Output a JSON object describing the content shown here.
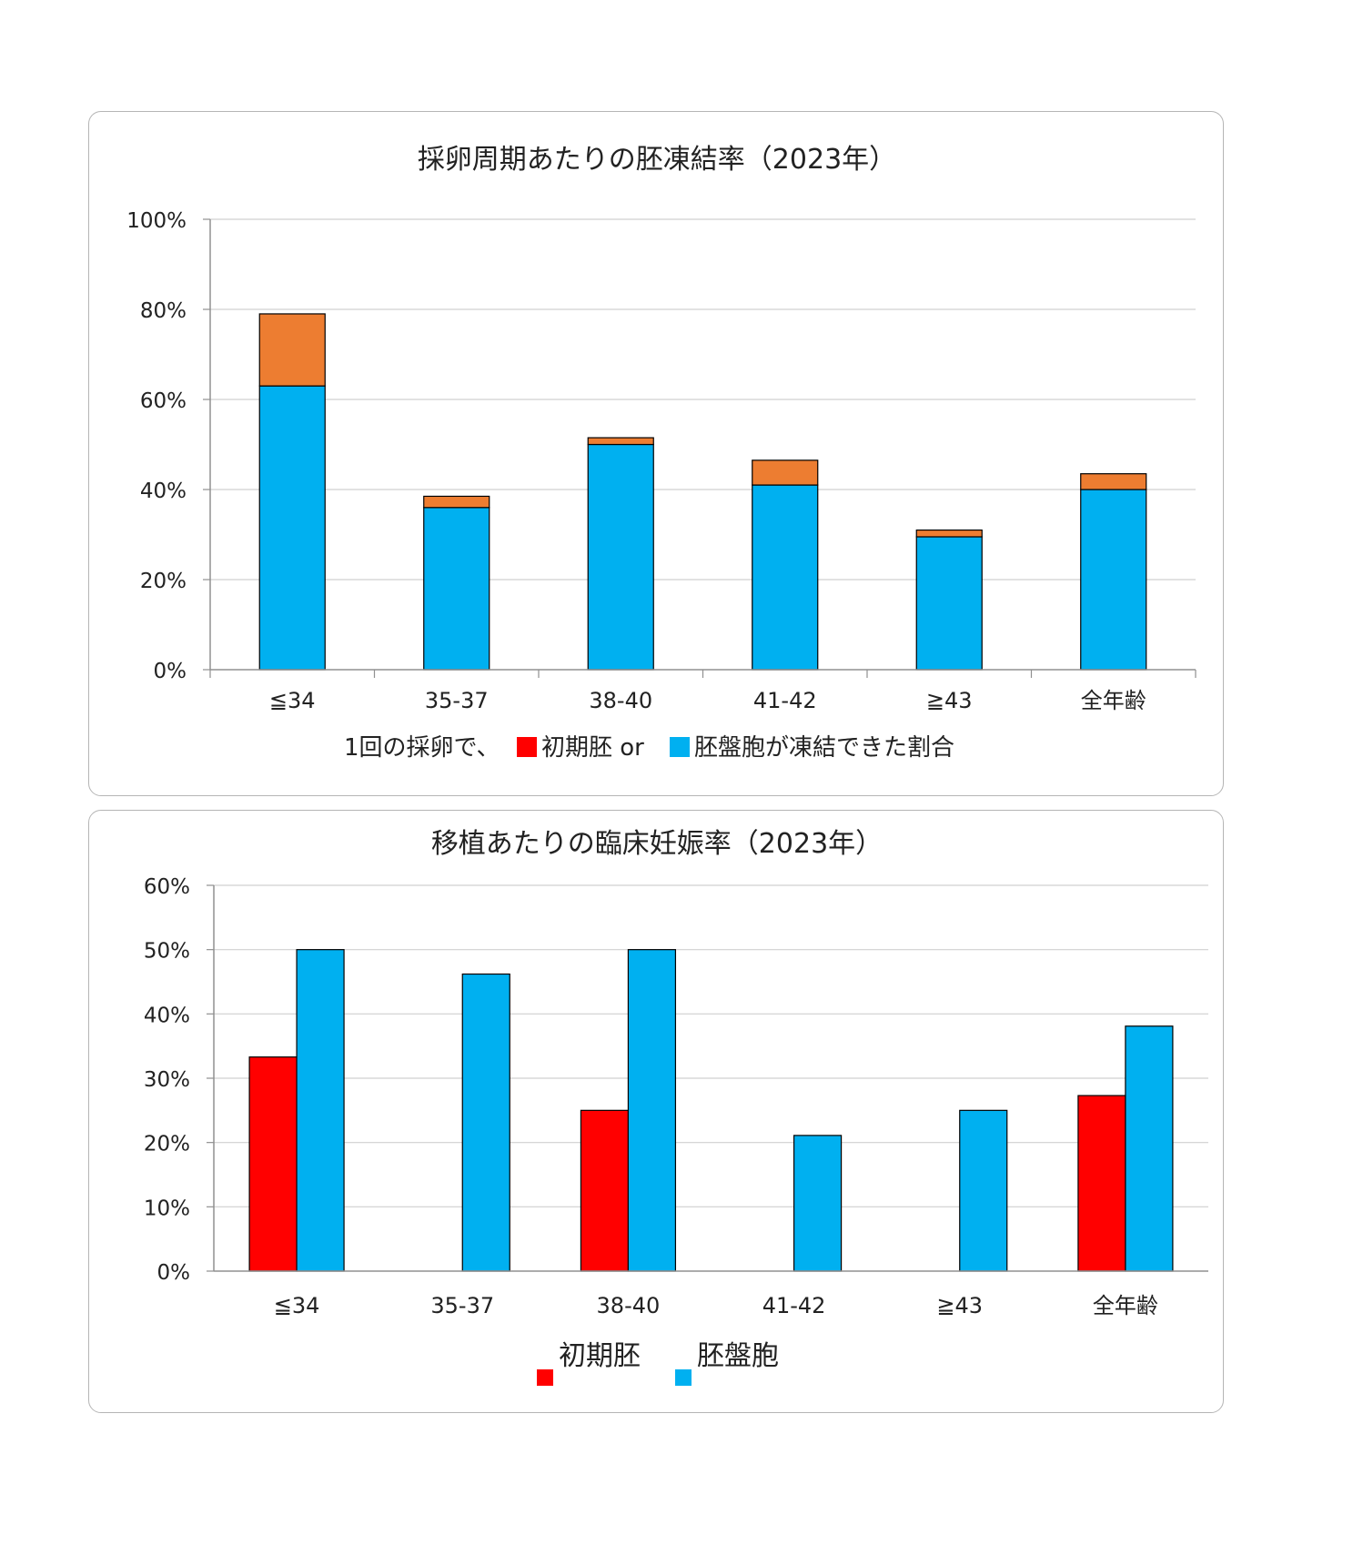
{
  "colors": {
    "initial": "#ff0000",
    "blastocyst": "#00b0f0",
    "extra": "#ed7d31",
    "grid": "#d0d0d0",
    "axis": "#909090"
  },
  "chart_data": [
    {
      "type": "bar",
      "stacked": true,
      "title": "採卵周期あたりの胚凍結率（2023年）",
      "subtitle_parts": [
        "1回の採卵で、",
        "初期胚 or ",
        "胚盤胞が凍結できた割合"
      ],
      "categories": [
        "≦34",
        "35-37",
        "38-40",
        "41-42",
        "≧43",
        "全年齢"
      ],
      "series": [
        {
          "values": [
            63,
            36,
            50,
            41,
            29.5,
            40
          ],
          "color": "#00b0f0"
        },
        {
          "values": [
            16,
            2.5,
            1.5,
            5.5,
            1.5,
            3.5
          ],
          "color": "#ed7d31"
        }
      ],
      "ylim": [
        0,
        100
      ],
      "yticks": [
        "0%",
        "20%",
        "40%",
        "60%",
        "80%",
        "100%"
      ],
      "grid": true
    },
    {
      "type": "bar",
      "title": "移植あたりの臨床妊娠率（2023年）",
      "categories": [
        "≦34",
        "35-37",
        "38-40",
        "41-42",
        "≧43",
        "全年齢"
      ],
      "series": [
        {
          "name": "初期胚",
          "values": [
            33.3,
            0,
            25,
            0,
            0,
            27.3
          ],
          "color": "#ff0000"
        },
        {
          "name": "胚盤胞",
          "values": [
            50,
            46.2,
            50,
            21.1,
            25,
            38.1
          ],
          "color": "#00b0f0"
        }
      ],
      "ylim": [
        0,
        60
      ],
      "yticks": [
        "0%",
        "10%",
        "20%",
        "30%",
        "40%",
        "50%",
        "60%"
      ],
      "grid": true,
      "legend": "bottom"
    }
  ]
}
